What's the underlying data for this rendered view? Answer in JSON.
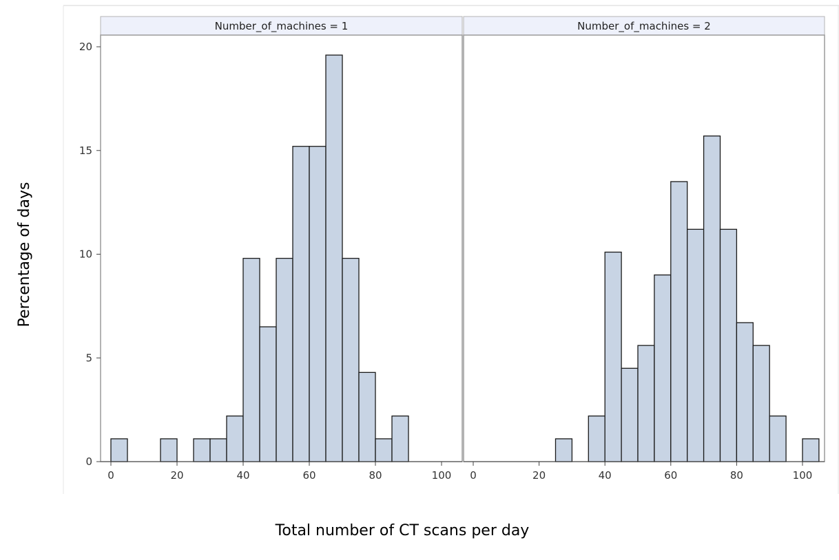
{
  "chart_data": {
    "type": "bar",
    "xlabel": "Total number of CT scans per day",
    "ylabel": "Percentage of days",
    "bin_width": 5,
    "xlim": [
      0,
      105
    ],
    "ylim": [
      0,
      20
    ],
    "x_ticks": [
      "0",
      "20",
      "40",
      "60",
      "80",
      "100"
    ],
    "y_ticks": [
      "0",
      "5",
      "10",
      "15",
      "20"
    ],
    "grid": false,
    "colors": {
      "bar_fill": "#c8d4e4",
      "bar_stroke": "#1a1a1a",
      "header_fill": "#eef1fb",
      "frame": "#9a9a9a"
    },
    "panels": [
      {
        "title": "Number_of_machines = 1",
        "bins": [
          {
            "start": 0,
            "value": 1.1
          },
          {
            "start": 15,
            "value": 1.1
          },
          {
            "start": 25,
            "value": 1.1
          },
          {
            "start": 30,
            "value": 1.1
          },
          {
            "start": 35,
            "value": 2.2
          },
          {
            "start": 40,
            "value": 9.8
          },
          {
            "start": 45,
            "value": 6.5
          },
          {
            "start": 50,
            "value": 9.8
          },
          {
            "start": 55,
            "value": 15.2
          },
          {
            "start": 60,
            "value": 15.2
          },
          {
            "start": 65,
            "value": 19.6
          },
          {
            "start": 70,
            "value": 9.8
          },
          {
            "start": 75,
            "value": 4.3
          },
          {
            "start": 80,
            "value": 1.1
          },
          {
            "start": 85,
            "value": 2.2
          }
        ]
      },
      {
        "title": "Number_of_machines = 2",
        "bins": [
          {
            "start": 25,
            "value": 1.1
          },
          {
            "start": 35,
            "value": 2.2
          },
          {
            "start": 40,
            "value": 10.1
          },
          {
            "start": 45,
            "value": 4.5
          },
          {
            "start": 50,
            "value": 5.6
          },
          {
            "start": 55,
            "value": 9.0
          },
          {
            "start": 60,
            "value": 13.5
          },
          {
            "start": 65,
            "value": 11.2
          },
          {
            "start": 70,
            "value": 15.7
          },
          {
            "start": 75,
            "value": 11.2
          },
          {
            "start": 80,
            "value": 6.7
          },
          {
            "start": 85,
            "value": 5.6
          },
          {
            "start": 90,
            "value": 2.2
          },
          {
            "start": 100,
            "value": 1.1
          }
        ]
      }
    ]
  }
}
